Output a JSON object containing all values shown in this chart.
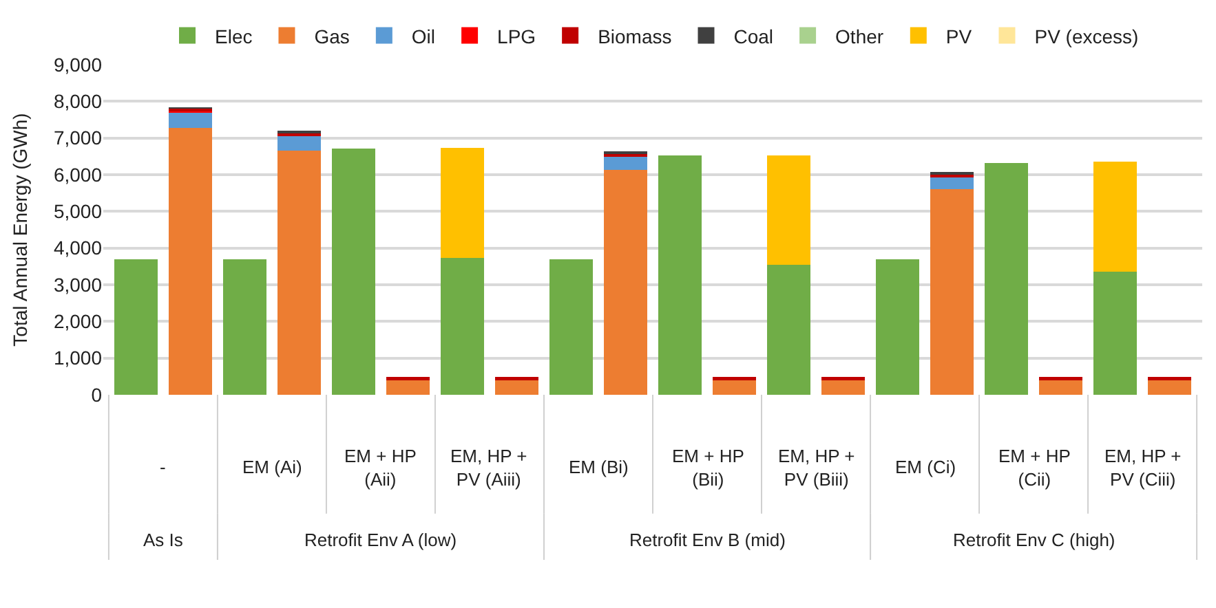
{
  "chart_data": {
    "type": "bar",
    "stacked": true,
    "ylabel": "Total Annual Energy (GWh)",
    "categories": [
      "-",
      null,
      "EM (Ai)",
      null,
      "EM + HP (Aii)",
      null,
      "EM, HP + PV (Aiii)",
      null,
      "EM (Bi)",
      null,
      "EM + HP (Bii)",
      null,
      "EM, HP + PV (Biii)",
      null,
      "EM (Ci)",
      null,
      "EM + HP (Cii)",
      null,
      "EM, HP + PV (Ciii)",
      null
    ],
    "series": [
      {
        "name": "Elec",
        "color": "#70ad47",
        "values": [
          3700,
          null,
          3700,
          null,
          6710,
          null,
          3730,
          null,
          3700,
          null,
          6520,
          null,
          3550,
          null,
          3700,
          null,
          6320,
          null,
          3350,
          null
        ]
      },
      {
        "name": "Gas",
        "color": "#ed7d31",
        "values": [
          null,
          7270,
          null,
          6660,
          null,
          390,
          null,
          390,
          null,
          6140,
          null,
          390,
          null,
          390,
          null,
          5610,
          null,
          390,
          null,
          390
        ]
      },
      {
        "name": "Oil",
        "color": "#5b9bd5",
        "values": [
          null,
          420,
          null,
          390,
          null,
          null,
          null,
          null,
          null,
          350,
          null,
          null,
          null,
          null,
          null,
          330,
          null,
          null,
          null,
          null
        ]
      },
      {
        "name": "LPG",
        "color": "#ff0000",
        "values": [
          null,
          30,
          null,
          30,
          null,
          null,
          null,
          null,
          null,
          30,
          null,
          null,
          null,
          null,
          null,
          20,
          null,
          null,
          null,
          null
        ]
      },
      {
        "name": "Biomass",
        "color": "#c00000",
        "values": [
          null,
          80,
          null,
          60,
          null,
          90,
          null,
          90,
          null,
          60,
          null,
          90,
          null,
          90,
          null,
          50,
          null,
          90,
          null,
          90
        ]
      },
      {
        "name": "Coal",
        "color": "#404040",
        "values": [
          null,
          20,
          null,
          30,
          null,
          null,
          null,
          null,
          null,
          30,
          null,
          null,
          null,
          null,
          null,
          30,
          null,
          null,
          null,
          null
        ]
      },
      {
        "name": "Other",
        "color": "#a9d18e",
        "values": [
          null,
          null,
          null,
          null,
          null,
          null,
          null,
          null,
          null,
          null,
          null,
          null,
          null,
          null,
          null,
          null,
          null,
          null,
          null,
          null
        ]
      },
      {
        "name": "PV",
        "color": "#ffc000",
        "values": [
          null,
          null,
          null,
          null,
          null,
          null,
          3000,
          null,
          null,
          null,
          null,
          null,
          2980,
          null,
          null,
          null,
          null,
          null,
          3000,
          null
        ]
      },
      {
        "name": "PV (excess)",
        "color": "#ffe699",
        "values": [
          null,
          null,
          null,
          null,
          null,
          null,
          null,
          null,
          null,
          null,
          null,
          null,
          null,
          null,
          null,
          null,
          null,
          null,
          null,
          null
        ]
      }
    ],
    "annotations": [
      "As Is",
      "Retrofit Env A (low)",
      "Retrofit Env B (mid)",
      "Retrofit Env C (high)"
    ],
    "ylim": [
      0,
      9000
    ],
    "yticks": [
      0,
      {
        "value": 1000,
        "label": "1,000"
      },
      {
        "value": 2000,
        "label": "2,000"
      },
      {
        "value": 3000,
        "label": "3,000"
      },
      {
        "value": 4000,
        "label": "4,000"
      },
      {
        "value": 5000,
        "label": "5,000"
      },
      {
        "value": 6000,
        "label": "6,000"
      },
      {
        "value": 7000,
        "label": "7,000"
      },
      {
        "value": 8000,
        "label": "8,000"
      },
      {
        "value": 9000,
        "label": "9,000"
      }
    ],
    "grid": "y",
    "legend": "top"
  }
}
